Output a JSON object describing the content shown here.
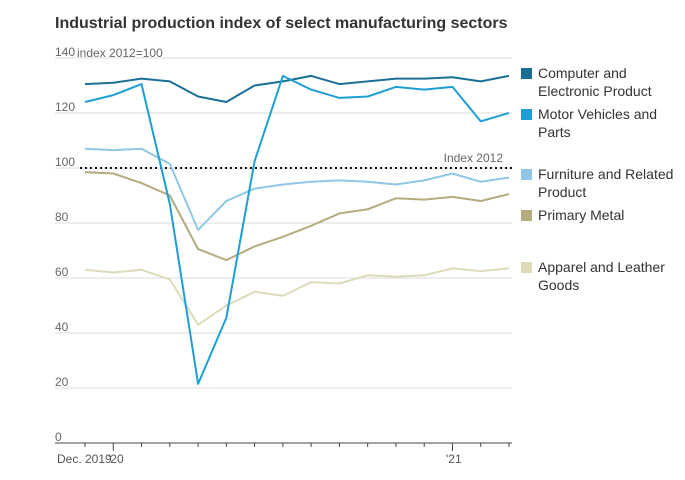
{
  "chart_data": {
    "type": "line",
    "title": "Industrial production index of select manufacturing sectors",
    "y_unit_label": "index 2012=100",
    "ylim": [
      0,
      140
    ],
    "yticks": [
      0,
      20,
      40,
      60,
      80,
      100,
      120,
      140
    ],
    "x_tick_labels": [
      "Dec. 2019",
      "'20",
      "'21"
    ],
    "x": [
      "2019-12",
      "2020-01",
      "2020-02",
      "2020-03",
      "2020-04",
      "2020-05",
      "2020-06",
      "2020-07",
      "2020-08",
      "2020-09",
      "2020-10",
      "2020-11",
      "2020-12",
      "2021-01",
      "2021-02",
      "2021-03"
    ],
    "reference_line": {
      "value": 100,
      "label": "Index 2012"
    },
    "grid": "horizontal",
    "legend": "right",
    "series": [
      {
        "name": "Computer and Electronic Product",
        "color": "#1a6f96",
        "values": [
          130.5,
          131.0,
          132.5,
          131.5,
          126,
          124,
          130,
          131.5,
          133.5,
          130.5,
          131.5,
          132.5,
          132.5,
          133,
          131.5,
          133.5
        ]
      },
      {
        "name": "Motor Vehicles and Parts",
        "color": "#1d9fd6",
        "values": [
          124,
          126.5,
          130.5,
          87,
          21.5,
          45.5,
          102.5,
          133.5,
          128.5,
          125.5,
          126,
          129.5,
          128.5,
          129.5,
          117,
          120
        ]
      },
      {
        "name": "Furniture and Related Product",
        "color": "#8fc7e6",
        "values": [
          107,
          106.5,
          107,
          101.5,
          77.5,
          88,
          92.5,
          94,
          95,
          95.5,
          95,
          94,
          95.5,
          98,
          95,
          96.5
        ]
      },
      {
        "name": "Primary Metal",
        "color": "#b5ab7f",
        "values": [
          98.5,
          98,
          94.5,
          90,
          70.5,
          66.5,
          71.5,
          75,
          79,
          83.5,
          85,
          89,
          88.5,
          89.5,
          88,
          90.5
        ]
      },
      {
        "name": "Apparel and Leather Goods",
        "color": "#dedbb8",
        "values": [
          63,
          62,
          63,
          59.5,
          43,
          50,
          55,
          53.5,
          58.5,
          58,
          61,
          60.5,
          61,
          63.5,
          62.5,
          63.5
        ]
      }
    ]
  }
}
